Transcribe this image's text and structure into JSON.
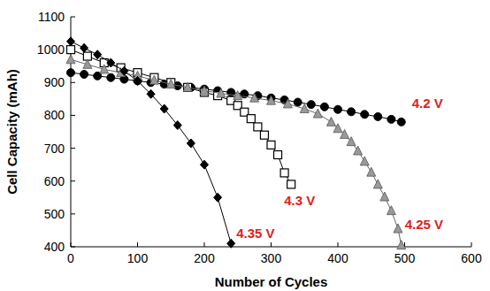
{
  "chart_data": {
    "type": "line",
    "x_label": "Number of Cycles",
    "y_label": "Cell Capacity (mAh)",
    "xlim": [
      0,
      600
    ],
    "ylim": [
      400,
      1100
    ],
    "xticks": [
      0,
      100,
      200,
      300,
      400,
      500,
      600
    ],
    "yticks": [
      400,
      500,
      600,
      700,
      800,
      900,
      1000,
      1100
    ],
    "grid": false,
    "series": [
      {
        "name": "4.2 V",
        "color": "#000000",
        "marker": "circle",
        "x": [
          0,
          20,
          40,
          60,
          80,
          100,
          120,
          140,
          160,
          180,
          200,
          220,
          240,
          260,
          280,
          300,
          320,
          340,
          360,
          380,
          400,
          420,
          440,
          460,
          480,
          495
        ],
        "values": [
          930,
          925,
          920,
          915,
          910,
          905,
          900,
          895,
          890,
          885,
          880,
          875,
          870,
          865,
          860,
          853,
          847,
          840,
          833,
          826,
          818,
          811,
          803,
          796,
          788,
          780
        ]
      },
      {
        "name": "4.3 V",
        "color": "#000000",
        "marker": "open-square",
        "x": [
          0,
          25,
          50,
          75,
          100,
          125,
          150,
          175,
          200,
          220,
          240,
          250,
          260,
          270,
          280,
          290,
          300,
          310,
          320,
          330
        ],
        "values": [
          1000,
          980,
          960,
          945,
          930,
          915,
          900,
          885,
          870,
          860,
          845,
          830,
          810,
          790,
          765,
          740,
          710,
          680,
          625,
          590
        ]
      },
      {
        "name": "4.25 V",
        "color": "#999999",
        "marker": "triangle",
        "x": [
          0,
          25,
          50,
          75,
          100,
          125,
          150,
          175,
          200,
          225,
          250,
          275,
          300,
          325,
          350,
          370,
          390,
          400,
          410,
          420,
          430,
          440,
          450,
          460,
          470,
          480,
          490,
          495
        ],
        "values": [
          970,
          955,
          940,
          930,
          920,
          907,
          895,
          885,
          875,
          867,
          860,
          853,
          845,
          835,
          820,
          805,
          780,
          760,
          742,
          720,
          692,
          660,
          627,
          590,
          552,
          510,
          455,
          405
        ]
      },
      {
        "name": "4.35 V",
        "color": "#000000",
        "marker": "diamond",
        "x": [
          0,
          20,
          40,
          60,
          80,
          100,
          120,
          140,
          160,
          180,
          200,
          220,
          240
        ],
        "values": [
          1025,
          1005,
          985,
          960,
          935,
          905,
          865,
          820,
          770,
          715,
          650,
          550,
          410
        ]
      }
    ]
  }
}
